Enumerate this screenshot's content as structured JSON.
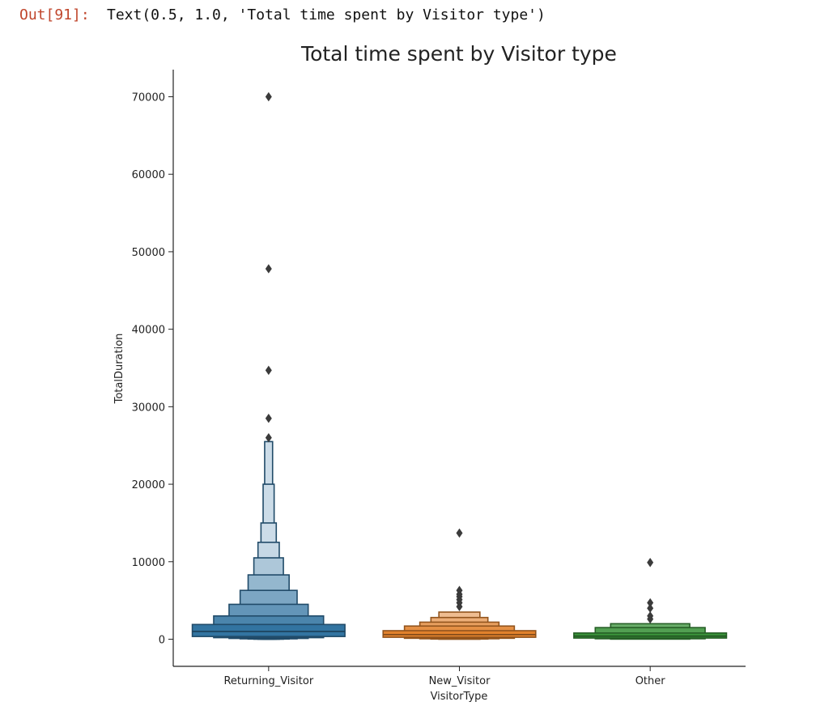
{
  "output_cell": {
    "prompt": "Out[91]:",
    "text": "Text(0.5, 1.0, 'Total time spent by Visitor type')"
  },
  "chart_data": {
    "type": "boxen",
    "title": "Total time spent by Visitor type",
    "xlabel": "VisitorType",
    "ylabel": "TotalDuration",
    "ylim": [
      -3500,
      73500
    ],
    "yticks": [
      0,
      10000,
      20000,
      30000,
      40000,
      50000,
      60000,
      70000
    ],
    "grid": false,
    "categories": [
      "Returning_Visitor",
      "New_Visitor",
      "Other"
    ],
    "series": [
      {
        "category": "Returning_Visitor",
        "color": "#3274a1",
        "median": 1000,
        "letter_values": [
          {
            "low": 350,
            "high": 1900
          },
          {
            "low": 200,
            "high": 3000
          },
          {
            "low": 100,
            "high": 4500
          },
          {
            "low": 50,
            "high": 6300
          },
          {
            "low": 20,
            "high": 8300
          },
          {
            "low": 5,
            "high": 10500
          },
          {
            "low": 0,
            "high": 12500
          },
          {
            "low": 0,
            "high": 15000
          },
          {
            "low": 0,
            "high": 20000
          },
          {
            "low": 0,
            "high": 25500
          }
        ],
        "outliers": [
          26000,
          28500,
          34700,
          47800,
          70000
        ]
      },
      {
        "category": "New_Visitor",
        "color": "#e1812c",
        "median": 600,
        "letter_values": [
          {
            "low": 250,
            "high": 1100
          },
          {
            "low": 120,
            "high": 1700
          },
          {
            "low": 60,
            "high": 2200
          },
          {
            "low": 20,
            "high": 2800
          },
          {
            "low": 0,
            "high": 3500
          }
        ],
        "outliers": [
          4200,
          4700,
          5100,
          5500,
          5800,
          6300,
          13700
        ]
      },
      {
        "category": "Other",
        "color": "#3a923a",
        "median": 400,
        "letter_values": [
          {
            "low": 150,
            "high": 800
          },
          {
            "low": 60,
            "high": 1500
          },
          {
            "low": 10,
            "high": 2000
          }
        ],
        "outliers": [
          2600,
          3000,
          4000,
          4700,
          9900
        ]
      }
    ]
  }
}
